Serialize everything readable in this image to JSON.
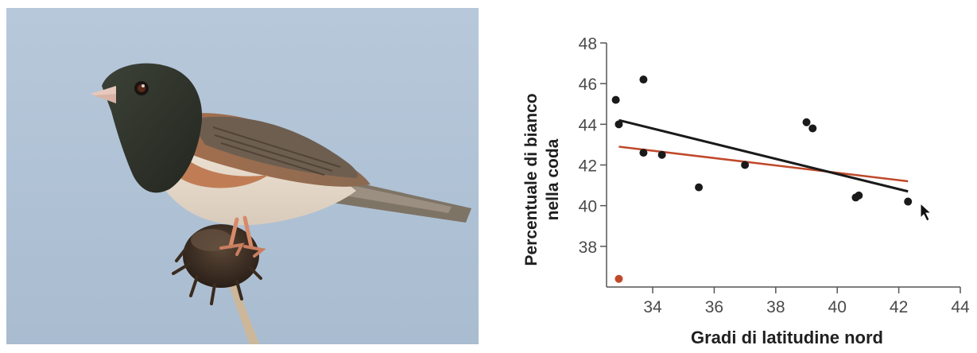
{
  "photo": {
    "sky_color": "#b4c5d7"
  },
  "chart_data": {
    "type": "scatter",
    "title": "",
    "xlabel": "Gradi di latitudine nord",
    "ylabel_lines": [
      "Percentuale di bianco",
      "nella coda"
    ],
    "xlim": [
      32.5,
      44
    ],
    "ylim": [
      36,
      48
    ],
    "x_ticks": [
      34,
      36,
      38,
      40,
      42,
      44
    ],
    "y_ticks": [
      38,
      40,
      42,
      44,
      46,
      48
    ],
    "x_tick_labels": [
      "34",
      "36",
      "38",
      "40",
      "42",
      "44"
    ],
    "y_tick_labels": [
      "38",
      "40",
      "42",
      "44",
      "46",
      "48"
    ],
    "grid": false,
    "points": [
      {
        "x": 32.8,
        "y": 45.2
      },
      {
        "x": 32.9,
        "y": 44.0
      },
      {
        "x": 33.7,
        "y": 46.2
      },
      {
        "x": 33.7,
        "y": 42.6
      },
      {
        "x": 34.3,
        "y": 42.5
      },
      {
        "x": 35.5,
        "y": 40.9
      },
      {
        "x": 37.0,
        "y": 42.0
      },
      {
        "x": 39.0,
        "y": 44.1
      },
      {
        "x": 39.2,
        "y": 43.8
      },
      {
        "x": 40.6,
        "y": 40.4
      },
      {
        "x": 40.7,
        "y": 40.5
      },
      {
        "x": 42.3,
        "y": 40.2
      }
    ],
    "outlier": {
      "x": 32.9,
      "y": 36.4
    },
    "fit_black": {
      "x1": 32.9,
      "y1": 44.2,
      "x2": 42.3,
      "y2": 40.7
    },
    "fit_red": {
      "x1": 32.9,
      "y1": 42.9,
      "x2": 42.3,
      "y2": 41.2
    },
    "colors": {
      "points": "#1a1a1a",
      "outlier": "#c0492b",
      "fit_black": "#1a1a1a",
      "fit_red": "#c0492b",
      "axis": "#555555"
    }
  }
}
